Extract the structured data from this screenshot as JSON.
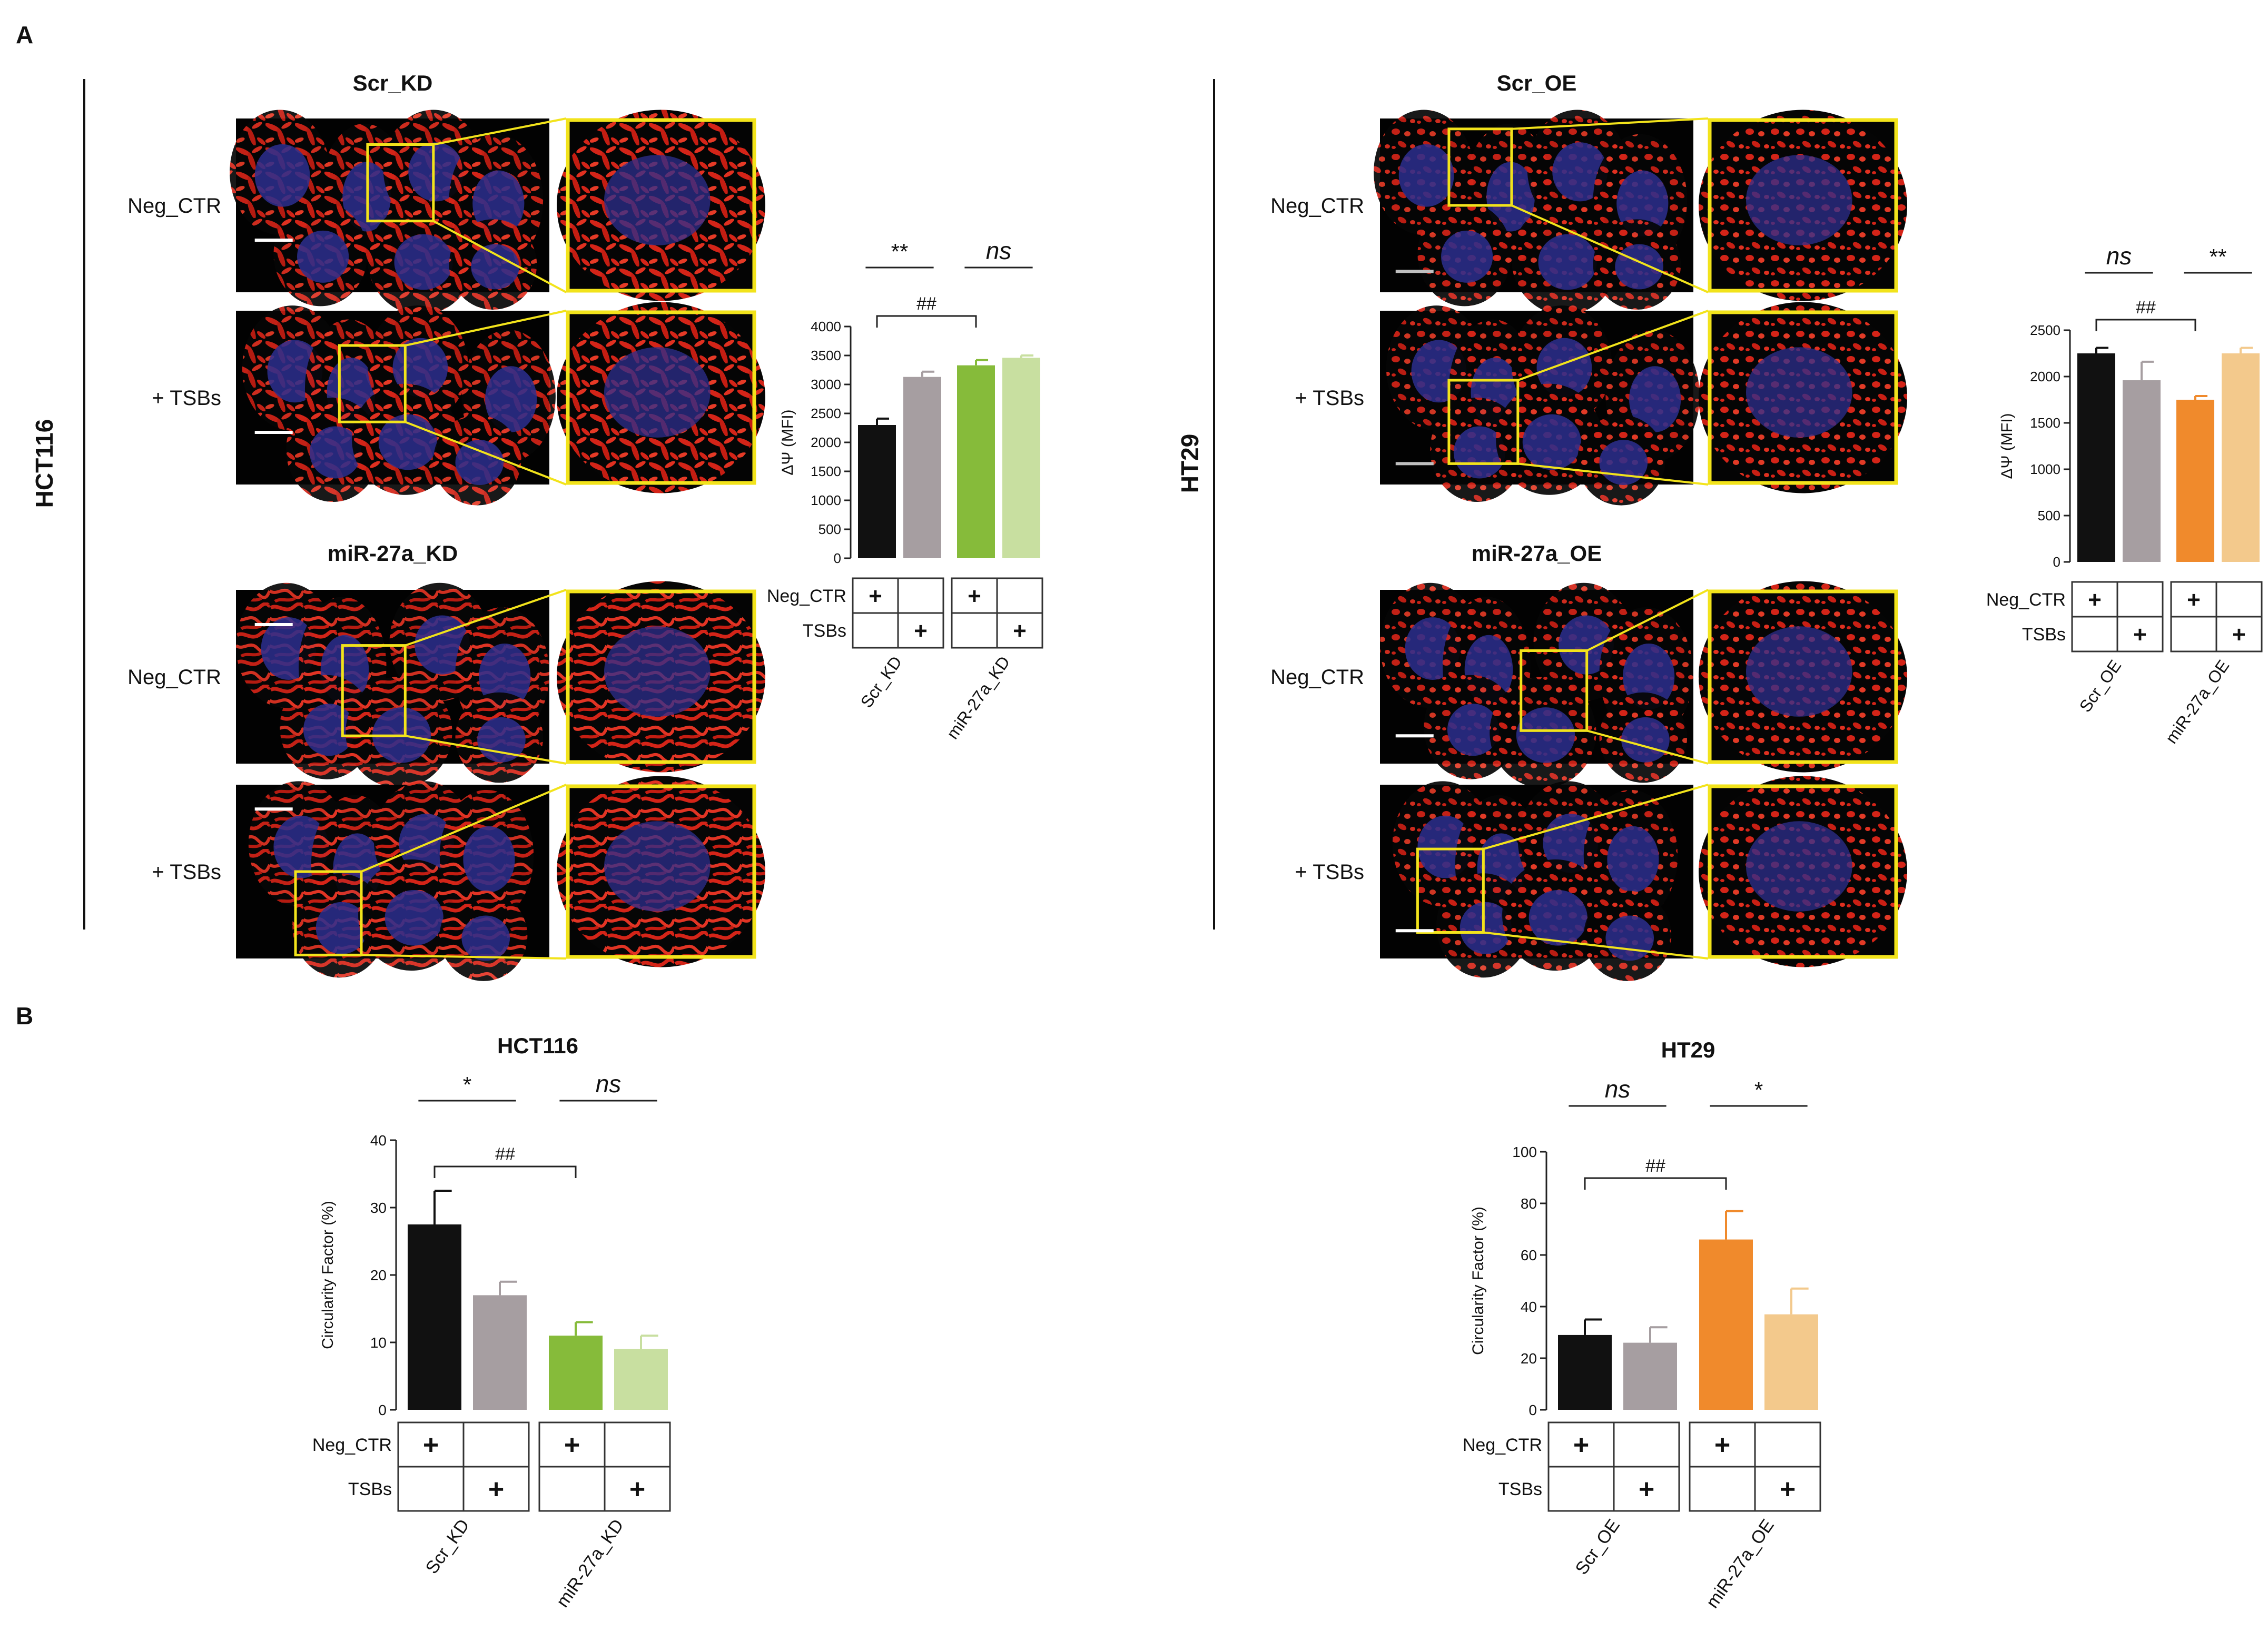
{
  "panels": {
    "A": {
      "letter": "A"
    },
    "B": {
      "letter": "B"
    }
  },
  "panel_a": {
    "hct116": {
      "cell_line": "HCT116",
      "groups": [
        {
          "title": "Scr_KD",
          "rows": [
            "Neg_CTR",
            "+ TSBs"
          ]
        },
        {
          "title": "miR-27a_KD",
          "rows": [
            "Neg_CTR",
            "+ TSBs"
          ]
        }
      ]
    },
    "ht29": {
      "cell_line": "HT29",
      "groups": [
        {
          "title": "Scr_OE",
          "rows": [
            "Neg_CTR",
            "+ TSBs"
          ]
        },
        {
          "title": "miR-27a_OE",
          "rows": [
            "Neg_CTR",
            "+ TSBs"
          ]
        }
      ]
    }
  },
  "legend_table": {
    "row_labels": [
      "Neg_CTR",
      "TSBs"
    ],
    "plus": "+"
  },
  "colors": {
    "black": "#111111",
    "grey": "#a69ea1",
    "green": "#86bb3a",
    "light_green": "#c8dfa0",
    "orange": "#f08a2c",
    "light_orange": "#f3c98c",
    "yellow_box": "#f2e31b",
    "image_red": "#d42418",
    "image_blue": "#2d2f8f"
  },
  "chart_data": [
    {
      "id": "A-HCT116",
      "type": "bar",
      "ylabel": "ΔΨ (MFI)",
      "ylim": [
        0,
        4000
      ],
      "yticks": [
        "0",
        "500",
        "1000",
        "1500",
        "2000",
        "2500",
        "3000",
        "3500",
        "4000"
      ],
      "values": [
        2300,
        3130,
        3330,
        3460
      ],
      "errors": [
        110,
        90,
        90,
        40
      ],
      "colors": [
        "#111111",
        "#a69ea1",
        "#86bb3a",
        "#c8dfa0"
      ],
      "groups": [
        "Scr_KD",
        "miR-27a_KD"
      ],
      "sig": [
        {
          "label": "**",
          "italic": false
        },
        {
          "label": "ns",
          "italic": true
        }
      ],
      "hash": "##"
    },
    {
      "id": "A-HT29",
      "type": "bar",
      "ylabel": "ΔΨ (MFI)",
      "ylim": [
        0,
        2500
      ],
      "yticks": [
        "0",
        "500",
        "1000",
        "1500",
        "2000",
        "2500"
      ],
      "values": [
        2250,
        1960,
        1750,
        2250
      ],
      "errors": [
        60,
        200,
        40,
        60
      ],
      "colors": [
        "#111111",
        "#a69ea1",
        "#f08a2c",
        "#f3c98c"
      ],
      "groups": [
        "Scr_OE",
        "miR-27a_OE"
      ],
      "sig": [
        {
          "label": "ns",
          "italic": true
        },
        {
          "label": "**",
          "italic": false
        }
      ],
      "hash": "##"
    },
    {
      "id": "B-HCT116",
      "type": "bar",
      "title": "HCT116",
      "ylabel": "Circularity Factor (%)",
      "ylim": [
        0,
        40
      ],
      "yticks": [
        "0",
        "10",
        "20",
        "30",
        "40"
      ],
      "values": [
        27.5,
        17,
        11,
        9
      ],
      "errors": [
        5,
        2,
        2,
        2
      ],
      "colors": [
        "#111111",
        "#a69ea1",
        "#86bb3a",
        "#c8dfa0"
      ],
      "groups": [
        "Scr_KD",
        "miR-27a_KD"
      ],
      "sig": [
        {
          "label": "*",
          "italic": false
        },
        {
          "label": "ns",
          "italic": true
        }
      ],
      "hash": "##"
    },
    {
      "id": "B-HT29",
      "type": "bar",
      "title": "HT29",
      "ylabel": "Circularity Factor (%)",
      "ylim": [
        0,
        100
      ],
      "yticks": [
        "0",
        "20",
        "40",
        "60",
        "80",
        "100"
      ],
      "values": [
        29,
        26,
        66,
        37
      ],
      "errors": [
        6,
        6,
        11,
        10
      ],
      "colors": [
        "#111111",
        "#a69ea1",
        "#f08a2c",
        "#f3c98c"
      ],
      "groups": [
        "Scr_OE",
        "miR-27a_OE"
      ],
      "sig": [
        {
          "label": "ns",
          "italic": true
        },
        {
          "label": "*",
          "italic": false
        }
      ],
      "hash": "##"
    }
  ]
}
